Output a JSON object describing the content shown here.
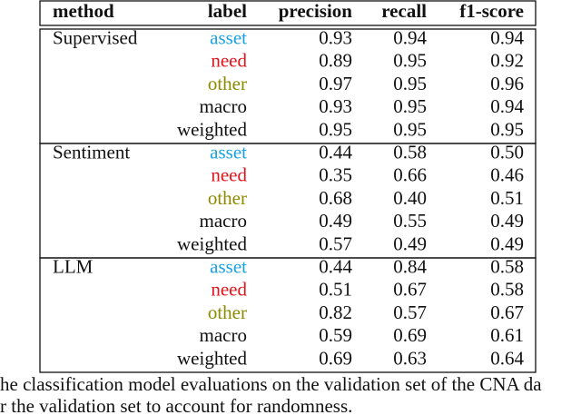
{
  "table": {
    "header": [
      "method",
      "label",
      "precision",
      "recall",
      "f1-score"
    ],
    "groups": [
      {
        "method": "Supervised",
        "rows": [
          [
            "asset",
            "0.93",
            "0.94",
            "0.94"
          ],
          [
            "need",
            "0.89",
            "0.95",
            "0.92"
          ],
          [
            "other",
            "0.97",
            "0.95",
            "0.96"
          ],
          [
            "macro",
            "0.93",
            "0.95",
            "0.94"
          ],
          [
            "weighted",
            "0.95",
            "0.95",
            "0.95"
          ]
        ]
      },
      {
        "method": "Sentiment",
        "rows": [
          [
            "asset",
            "0.44",
            "0.58",
            "0.50"
          ],
          [
            "need",
            "0.35",
            "0.66",
            "0.46"
          ],
          [
            "other",
            "0.68",
            "0.40",
            "0.51"
          ],
          [
            "macro",
            "0.49",
            "0.55",
            "0.49"
          ],
          [
            "weighted",
            "0.57",
            "0.49",
            "0.49"
          ]
        ]
      },
      {
        "method": "LLM",
        "rows": [
          [
            "asset",
            "0.44",
            "0.84",
            "0.58"
          ],
          [
            "need",
            "0.51",
            "0.67",
            "0.58"
          ],
          [
            "other",
            "0.82",
            "0.57",
            "0.67"
          ],
          [
            "macro",
            "0.59",
            "0.69",
            "0.61"
          ],
          [
            "weighted",
            "0.69",
            "0.63",
            "0.64"
          ]
        ]
      }
    ]
  },
  "caption": [
    "he classification model evaluations on the validation set of the CNA da",
    "r the validation set to account for randomness."
  ]
}
